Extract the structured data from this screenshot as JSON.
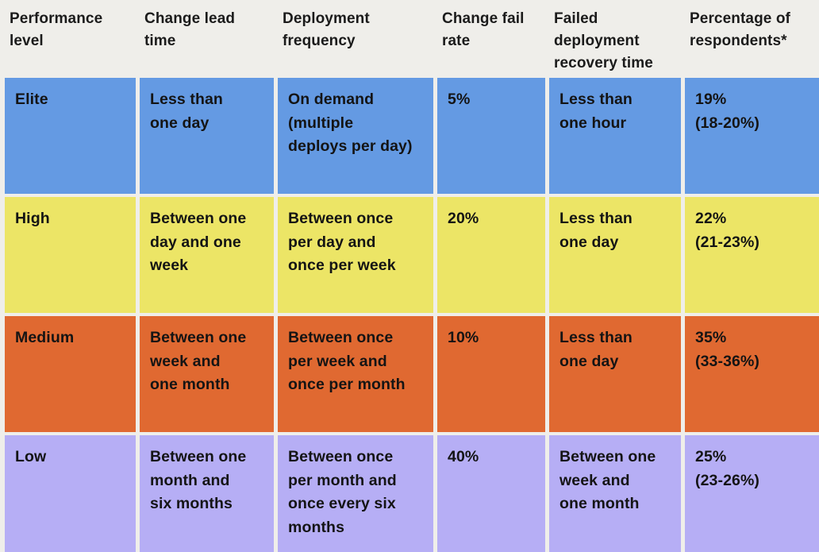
{
  "colors": {
    "background": "#efeeea",
    "text": "#141414",
    "rows": [
      "#649ae3",
      "#ece566",
      "#e06931",
      "#b6aef5"
    ]
  },
  "chart_data": {
    "type": "table",
    "title": "",
    "columns": [
      "Performance\nlevel",
      "Change lead\ntime",
      "Deployment\nfrequency",
      "Change fail\nrate",
      "Failed\ndeployment\nrecovery time",
      "Percentage of\nrespondents*"
    ],
    "column_names_plain": [
      "Performance level",
      "Change lead time",
      "Deployment frequency",
      "Change fail rate",
      "Failed deployment recovery time",
      "Percentage of respondents*"
    ],
    "rows": [
      [
        "Elite",
        "Less than\none day",
        "On demand\n(multiple\ndeploys per day)",
        "5%",
        "Less than\none hour",
        "19%\n(18-20%)"
      ],
      [
        "High",
        "Between one\nday and one\nweek",
        "Between once\nper day and\nonce per week",
        "20%",
        "Less than\none day",
        "22%\n(21-23%)"
      ],
      [
        "Medium",
        "Between one\nweek and\none month",
        "Between once\nper week and\nonce per month",
        "10%",
        "Less than\none day",
        "35%\n(33-36%)"
      ],
      [
        "Low",
        "Between one\nmonth and\nsix months",
        "Between once\nper month and\nonce every six\nmonths",
        "40%",
        "Between one\nweek and\none month",
        "25%\n(23-26%)"
      ]
    ],
    "row_levels": [
      "Elite",
      "High",
      "Medium",
      "Low"
    ],
    "legend_position": "none",
    "grid": false
  }
}
